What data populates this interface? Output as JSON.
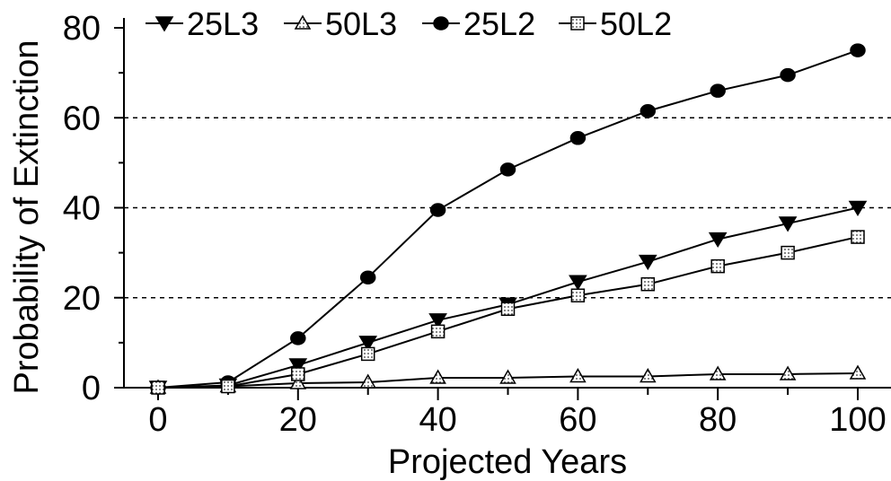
{
  "chart_data": {
    "type": "line",
    "title": "",
    "xlabel": "Projected Years",
    "ylabel": "Probability of Extinction",
    "xlim": [
      0,
      100
    ],
    "ylim": [
      0,
      80
    ],
    "xticks": [
      0,
      20,
      40,
      60,
      80,
      100
    ],
    "yticks": [
      0,
      20,
      40,
      60,
      80
    ],
    "grid_y_dashed": [
      20,
      40,
      60
    ],
    "legend_position": "top",
    "x": [
      0,
      10,
      20,
      30,
      40,
      50,
      60,
      70,
      80,
      90,
      100
    ],
    "series": [
      {
        "name": "25L3",
        "marker": "triangle-down",
        "color": "#000000",
        "values": [
          0,
          0.5,
          5,
          10,
          15,
          18.5,
          23.5,
          28,
          33,
          36.5,
          40
        ]
      },
      {
        "name": "50L3",
        "marker": "triangle-up",
        "color": "#000000",
        "values": [
          0,
          0.3,
          1,
          1.2,
          2.2,
          2.2,
          2.5,
          2.5,
          3,
          3,
          3.2
        ]
      },
      {
        "name": "25L2",
        "marker": "circle",
        "color": "#000000",
        "values": [
          0,
          1.2,
          11,
          24.5,
          39.5,
          48.5,
          55.5,
          61.5,
          66,
          69.5,
          75
        ]
      },
      {
        "name": "50L2",
        "marker": "square",
        "color": "#000000",
        "values": [
          0,
          0.3,
          3,
          7.5,
          12.5,
          17.5,
          20.5,
          23,
          27,
          30,
          33.5
        ]
      }
    ]
  }
}
